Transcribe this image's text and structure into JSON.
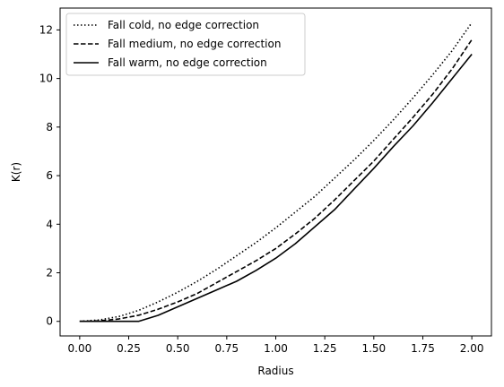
{
  "chart_data": {
    "type": "line",
    "xlabel": "Radius",
    "ylabel": "K(r)",
    "xlim": [
      -0.1,
      2.1
    ],
    "ylim": [
      -0.6,
      12.9
    ],
    "xticks": [
      0.0,
      0.25,
      0.5,
      0.75,
      1.0,
      1.25,
      1.5,
      1.75,
      2.0
    ],
    "xtick_labels": [
      "0.00",
      "0.25",
      "0.50",
      "0.75",
      "1.00",
      "1.25",
      "1.50",
      "1.75",
      "2.00"
    ],
    "yticks": [
      0,
      2,
      4,
      6,
      8,
      10,
      12
    ],
    "ytick_labels": [
      "0",
      "2",
      "4",
      "6",
      "8",
      "10",
      "12"
    ],
    "grid": false,
    "legend_position": "top-left",
    "line_color": "#000000",
    "series": [
      {
        "name": "Fall cold, no edge correction",
        "style": "dotted",
        "x": [
          0.0,
          0.1,
          0.2,
          0.3,
          0.4,
          0.5,
          0.6,
          0.7,
          0.8,
          0.9,
          1.0,
          1.1,
          1.2,
          1.3,
          1.4,
          1.5,
          1.6,
          1.7,
          1.8,
          1.9,
          2.0
        ],
        "values": [
          0.0,
          0.06,
          0.2,
          0.45,
          0.8,
          1.2,
          1.65,
          2.15,
          2.7,
          3.25,
          3.85,
          4.5,
          5.15,
          5.9,
          6.65,
          7.45,
          8.3,
          9.2,
          10.15,
          11.15,
          12.3
        ]
      },
      {
        "name": "Fall medium, no edge correction",
        "style": "dashed",
        "x": [
          0.0,
          0.1,
          0.2,
          0.3,
          0.4,
          0.5,
          0.6,
          0.7,
          0.8,
          0.9,
          1.0,
          1.1,
          1.2,
          1.3,
          1.4,
          1.5,
          1.6,
          1.7,
          1.8,
          1.9,
          2.0
        ],
        "values": [
          0.0,
          0.02,
          0.1,
          0.25,
          0.5,
          0.8,
          1.15,
          1.6,
          2.05,
          2.5,
          3.0,
          3.6,
          4.25,
          5.0,
          5.8,
          6.6,
          7.5,
          8.4,
          9.35,
          10.4,
          11.6
        ]
      },
      {
        "name": "Fall warm, no edge correction",
        "style": "solid",
        "x": [
          0.0,
          0.1,
          0.2,
          0.3,
          0.4,
          0.5,
          0.6,
          0.7,
          0.8,
          0.9,
          1.0,
          1.1,
          1.2,
          1.3,
          1.4,
          1.5,
          1.6,
          1.7,
          1.8,
          1.9,
          2.0
        ],
        "values": [
          0.0,
          0.0,
          0.0,
          0.0,
          0.25,
          0.6,
          0.95,
          1.3,
          1.65,
          2.1,
          2.6,
          3.2,
          3.9,
          4.6,
          5.45,
          6.3,
          7.2,
          8.05,
          9.0,
          10.0,
          11.0
        ]
      }
    ]
  }
}
